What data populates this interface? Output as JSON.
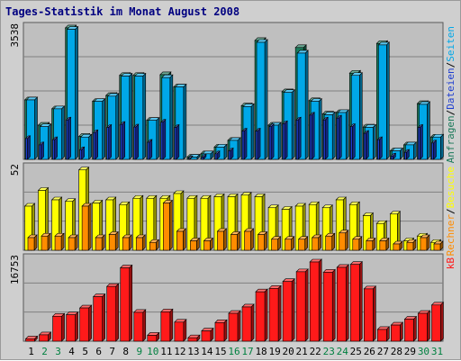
{
  "chart_data": {
    "type": "bar",
    "title": "Tages-Statistik im Monat August 2008",
    "categories": [
      "1",
      "2",
      "3",
      "4",
      "5",
      "6",
      "7",
      "8",
      "9",
      "10",
      "11",
      "12",
      "13",
      "14",
      "15",
      "16",
      "17",
      "18",
      "19",
      "20",
      "21",
      "22",
      "23",
      "24",
      "25",
      "26",
      "27",
      "28",
      "29",
      "30",
      "31"
    ],
    "weekend_categories": [
      "2",
      "3",
      "9",
      "10",
      "16",
      "17",
      "23",
      "24",
      "30",
      "31"
    ],
    "colors": {
      "title": "#000080",
      "background": "#bfbfbf",
      "anfragen": "#1b7a5a",
      "dateien": "#1f3fd0",
      "seiten": "#00a8e8",
      "besuche": "#ffff00",
      "rechner": "#ff8c00",
      "kb": "#ff1a1a",
      "weekday_label": "#000000",
      "weekend_label": "#008040"
    },
    "panels": [
      {
        "id": "hits",
        "ymax_label": "3538",
        "ylim": [
          0,
          3538
        ],
        "right_labels": [
          {
            "text": "Anfragen",
            "color": "#1b7a5a"
          },
          {
            "text": "/",
            "color": "#000000"
          },
          {
            "text": "Dateien",
            "color": "#1f3fd0"
          },
          {
            "text": "/",
            "color": "#000000"
          },
          {
            "text": "Seiten",
            "color": "#00a8e8"
          }
        ],
        "series": [
          {
            "name": "Anfragen",
            "values": [
              1600,
              920,
              1360,
              3540,
              620,
              1560,
              1720,
              2260,
              2260,
              1050,
              2280,
              1950,
              60,
              150,
              330,
              510,
              1440,
              3200,
              920,
              1820,
              3010,
              1580,
              1220,
              1260,
              2320,
              870,
              3120,
              230,
              390,
              1500,
              600
            ]
          },
          {
            "name": "Dateien",
            "values": [
              560,
              390,
              530,
              1060,
              260,
              720,
              860,
              940,
              870,
              460,
              1000,
              860,
              20,
              60,
              150,
              230,
              760,
              760,
              880,
              960,
              1060,
              1190,
              1060,
              1110,
              880,
              700,
              530,
              90,
              190,
              860,
              440
            ]
          },
          {
            "name": "Seiten",
            "values": [
              1600,
              880,
              1360,
              3500,
              600,
              1560,
              1700,
              2240,
              2240,
              1050,
              2200,
              1950,
              60,
              150,
              330,
              510,
              1420,
              3150,
              920,
              1800,
              2860,
              1560,
              1200,
              1260,
              2260,
              860,
              3080,
              230,
              390,
              1480,
              600
            ]
          }
        ]
      },
      {
        "id": "visits",
        "ymax_label": "52",
        "ylim": [
          0,
          52
        ],
        "right_labels": [
          {
            "text": "Rechner",
            "color": "#ff8c00"
          },
          {
            "text": "/",
            "color": "#000000"
          },
          {
            "text": "Besuche",
            "color": "#ffff00"
          }
        ],
        "series": [
          {
            "name": "Besuche",
            "values": [
              28,
              38,
              32,
              31,
              51,
              30,
              32,
              29,
              33,
              33,
              33,
              36,
              33,
              33,
              34,
              34,
              35,
              34,
              27,
              26,
              28,
              29,
              27,
              32,
              29,
              22,
              17,
              23,
              6,
              9,
              5
            ]
          },
          {
            "name": "Rechner",
            "values": [
              8,
              9,
              9,
              8,
              28,
              8,
              10,
              8,
              8,
              5,
              30,
              12,
              6,
              6,
              12,
              10,
              12,
              10,
              7,
              7,
              7,
              8,
              9,
              11,
              7,
              6,
              6,
              4,
              5,
              8,
              4
            ]
          }
        ]
      },
      {
        "id": "kb",
        "ymax_label": "16753",
        "ylim": [
          0,
          16753
        ],
        "right_labels": [
          {
            "text": "kB",
            "color": "#ff1a1a"
          }
        ],
        "series": [
          {
            "name": "kB",
            "values": [
              480,
              1300,
              5100,
              5400,
              6800,
              9100,
              11200,
              15000,
              5900,
              1200,
              6000,
              3900,
              700,
              2100,
              3800,
              5700,
              7000,
              10100,
              10800,
              12200,
              14200,
              16200,
              14100,
              15100,
              15700,
              10700,
              2400,
              3300,
              4500,
              5700,
              7400
            ]
          }
        ]
      }
    ]
  }
}
